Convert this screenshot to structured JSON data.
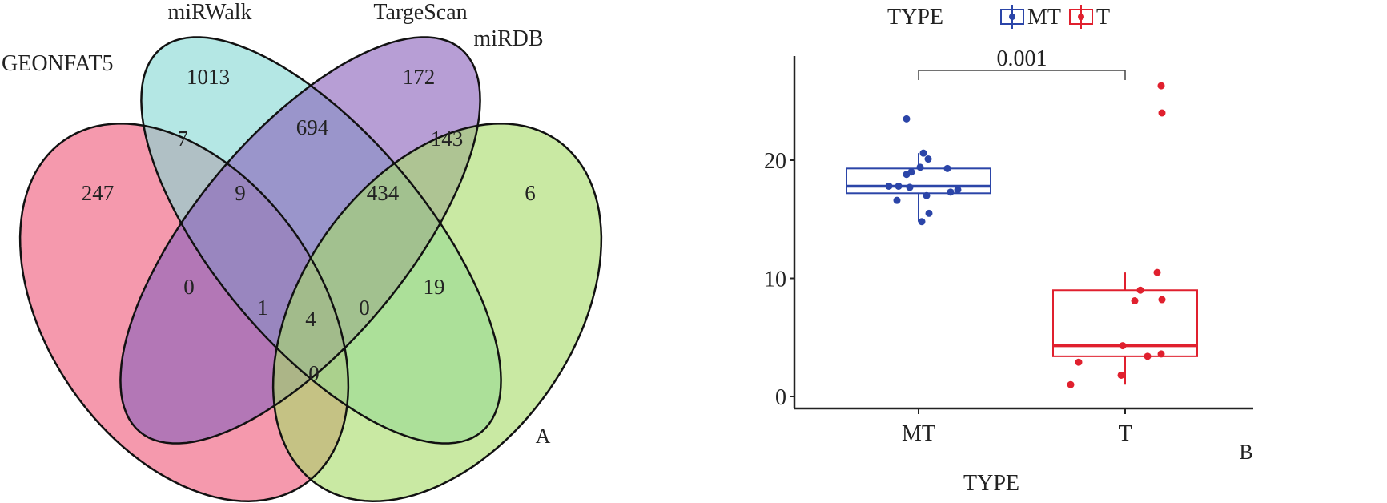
{
  "chart_data": [
    {
      "type": "venn",
      "panel_label": "A",
      "sets": [
        {
          "name": "GEONFAT5",
          "color": "#ef5b7a"
        },
        {
          "name": "miRWalk",
          "color": "#86d8d4"
        },
        {
          "name": "TargeScan",
          "color": "#8a62bb"
        },
        {
          "name": "miRDB",
          "color": "#a8dc6a"
        }
      ],
      "regions": [
        {
          "sets": "GEONFAT5",
          "value": "247"
        },
        {
          "sets": "miRWalk",
          "value": "1013"
        },
        {
          "sets": "TargeScan",
          "value": "172"
        },
        {
          "sets": "miRDB",
          "value": "6"
        },
        {
          "sets": "GEONFAT5&miRWalk",
          "value": "7"
        },
        {
          "sets": "miRWalk&TargeScan",
          "value": "694"
        },
        {
          "sets": "TargeScan&miRDB",
          "value": "143"
        },
        {
          "sets": "GEONFAT5&miRWalk&TargeScan",
          "value": "9"
        },
        {
          "sets": "miRWalk&TargeScan&miRDB",
          "value": "434"
        },
        {
          "sets": "all",
          "value": "4"
        },
        {
          "sets": "GEONFAT5&TargeScan",
          "value": "0"
        },
        {
          "sets": "GEONFAT5&TargeScan&miRDB",
          "value": "1"
        },
        {
          "sets": "GEONFAT5&miRWalk&miRDB",
          "value": "0"
        },
        {
          "sets": "miRWalk&miRDB",
          "value": "19"
        },
        {
          "sets": "GEONFAT5&miRDB",
          "value": "0"
        }
      ]
    },
    {
      "type": "box",
      "panel_label": "B",
      "xlabel": "TYPE",
      "ylabel": "",
      "ylim": [
        0,
        27
      ],
      "yticks": [
        "0",
        "10",
        "20"
      ],
      "categories": [
        "MT",
        "T"
      ],
      "legend": {
        "title": "TYPE",
        "entries": [
          "MT",
          "T"
        ],
        "placement": "top"
      },
      "annotation": "0.001",
      "series": [
        {
          "name": "MT",
          "color": "#2b45a8",
          "box": {
            "min": 14.8,
            "q1": 17.2,
            "median": 17.8,
            "q3": 19.3,
            "max": 20.6
          },
          "points": [
            23.5,
            20.6,
            20.1,
            19.4,
            19.3,
            19.0,
            18.8,
            17.8,
            17.8,
            17.7,
            17.5,
            17.3,
            17.0,
            16.6,
            15.5,
            14.8
          ]
        },
        {
          "name": "T",
          "color": "#e0202e",
          "box": {
            "min": 1.0,
            "q1": 3.4,
            "median": 4.3,
            "q3": 9.0,
            "max": 10.5
          },
          "points": [
            26.3,
            24.0,
            10.5,
            9.0,
            8.2,
            8.1,
            4.3,
            3.6,
            3.4,
            2.9,
            1.8,
            1.0
          ]
        }
      ]
    }
  ]
}
